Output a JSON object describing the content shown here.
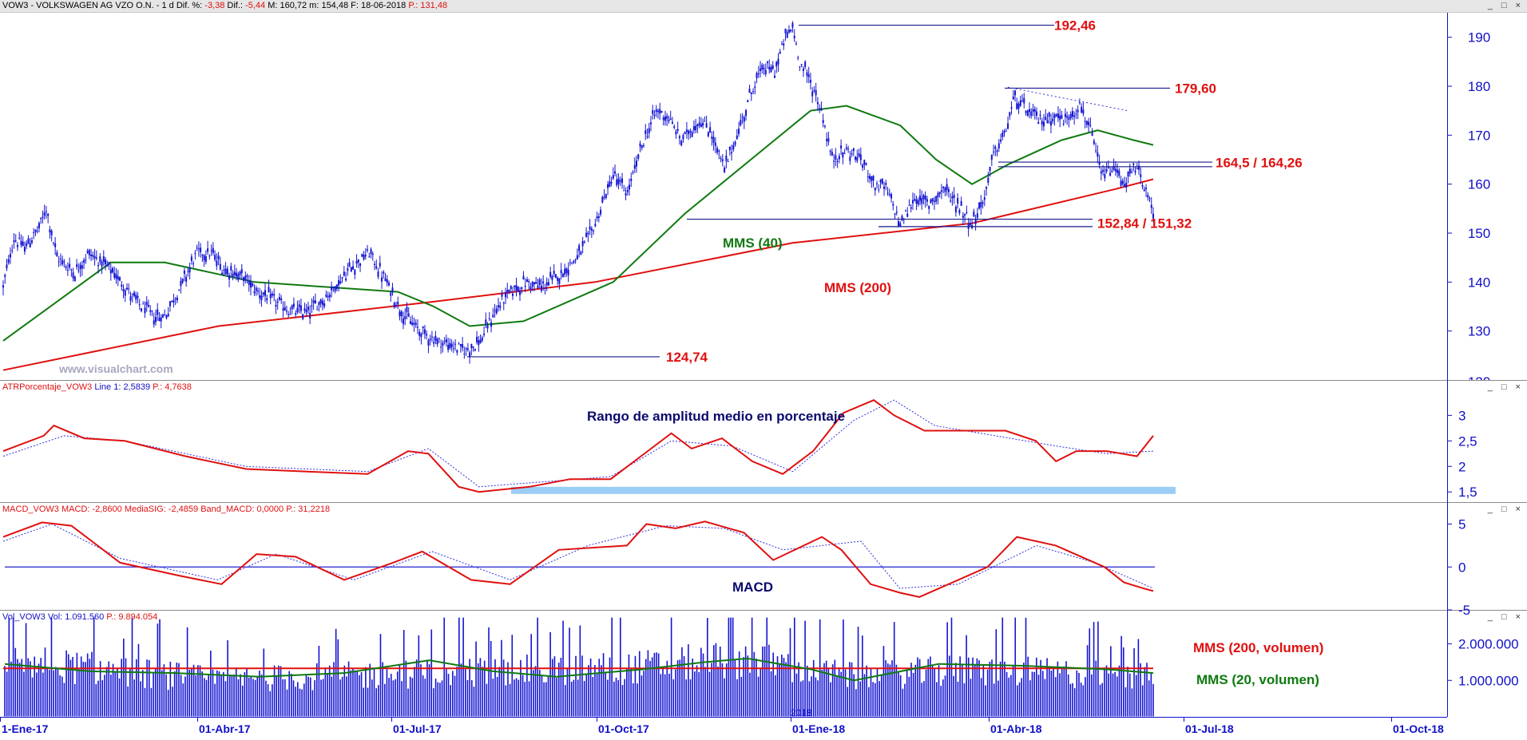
{
  "window": {
    "main_header": {
      "symbol": "VOW3 - VOLKSWAGEN AG VZO O.N. -  1 d",
      "dif_pct_label": "Dif. %:",
      "dif_pct_value": "-3,38",
      "dif_label": "Dif.:",
      "dif_value": "-5,44",
      "max_text": "M: 160,72",
      "min_text": "m: 154,48",
      "date_text": "F: 18-06-2018",
      "price_text": "P.: 131,48"
    },
    "atr_header": {
      "name": "ATRPorcentaje_VOW3",
      "line_text": "Line 1: 2,5839",
      "p_text": "P.: 4,7638"
    },
    "macd_header": {
      "text": "MACD_VOW3  MACD: -2,8600  MediaSIG: -2,4859  Band_MACD: 0,0000",
      "p_text": "P.: 31,2218"
    },
    "vol_header": {
      "text": "Vol_VOW3  Vol: 1.091.560",
      "p_text": "P.: 9.894.054"
    },
    "window_buttons": "_ □ ×"
  },
  "watermark": "www.visualchart.com",
  "colors": {
    "candles": "#1414d2",
    "mms200": "#e01010",
    "mms40": "#0f7a0f",
    "axis_text": "#1010c8",
    "annotation_red": "#e01010",
    "annotation_green": "#0f7a0f",
    "annotation_navy": "#0a0a6e",
    "atr_band": "#9ccdf5",
    "signal": "#3030e0"
  },
  "chart_data": [
    {
      "type": "candlestick",
      "panel": "price",
      "title": "VOW3 - VOLKSWAGEN AG VZO O.N.",
      "ylim": [
        120,
        195
      ],
      "y_ticks": [
        "130",
        "140",
        "150",
        "160",
        "170",
        "180",
        "190"
      ],
      "x_ticks": [
        "1-Ene-17",
        "01-Abr-17",
        "01-Jul-17",
        "01-Oct-17",
        "01-Ene-18",
        "01-Abr-18",
        "01-Jul-18",
        "01-Oct-18"
      ],
      "price_path": [
        [
          0,
          139
        ],
        [
          6,
          149
        ],
        [
          12,
          147
        ],
        [
          20,
          151
        ],
        [
          24,
          155
        ],
        [
          30,
          145
        ],
        [
          40,
          142
        ],
        [
          48,
          146
        ],
        [
          58,
          143
        ],
        [
          66,
          140
        ],
        [
          74,
          136
        ],
        [
          84,
          133
        ],
        [
          90,
          133
        ],
        [
          100,
          140
        ],
        [
          108,
          146
        ],
        [
          116,
          146
        ],
        [
          122,
          143
        ],
        [
          134,
          141
        ],
        [
          142,
          138
        ],
        [
          152,
          136
        ],
        [
          160,
          134
        ],
        [
          170,
          134
        ],
        [
          180,
          137
        ],
        [
          194,
          143
        ],
        [
          204,
          146
        ],
        [
          212,
          141
        ],
        [
          222,
          134
        ],
        [
          232,
          130
        ],
        [
          242,
          128
        ],
        [
          250,
          127
        ],
        [
          258,
          126
        ],
        [
          266,
          128
        ],
        [
          274,
          134
        ],
        [
          282,
          138
        ],
        [
          292,
          140
        ],
        [
          300,
          139
        ],
        [
          312,
          142
        ],
        [
          322,
          146
        ],
        [
          330,
          152
        ],
        [
          340,
          162
        ],
        [
          348,
          158
        ],
        [
          356,
          168
        ],
        [
          364,
          175
        ],
        [
          370,
          174
        ],
        [
          378,
          169
        ],
        [
          388,
          173
        ],
        [
          394,
          171
        ],
        [
          402,
          163
        ],
        [
          410,
          171
        ],
        [
          418,
          180
        ],
        [
          424,
          184
        ],
        [
          430,
          183
        ],
        [
          436,
          190
        ],
        [
          440,
          192
        ],
        [
          444,
          185
        ],
        [
          450,
          181
        ],
        [
          456,
          175
        ],
        [
          462,
          165
        ],
        [
          470,
          167
        ],
        [
          478,
          165
        ],
        [
          486,
          160
        ],
        [
          492,
          159
        ],
        [
          500,
          152
        ],
        [
          508,
          157
        ],
        [
          516,
          156
        ],
        [
          524,
          159
        ],
        [
          532,
          156
        ],
        [
          540,
          152
        ],
        [
          546,
          156
        ],
        [
          552,
          166
        ],
        [
          558,
          170
        ],
        [
          564,
          178
        ],
        [
          570,
          175
        ],
        [
          578,
          173
        ],
        [
          586,
          174
        ],
        [
          592,
          173
        ],
        [
          600,
          176
        ],
        [
          606,
          171
        ],
        [
          612,
          162
        ],
        [
          620,
          163
        ],
        [
          626,
          160
        ],
        [
          630,
          163
        ],
        [
          634,
          162
        ],
        [
          638,
          157
        ],
        [
          641,
          154
        ]
      ],
      "indicators": [
        {
          "name": "MMS (200)",
          "values": [
            [
              0,
              122
            ],
            [
              120,
              131
            ],
            [
              240,
              136
            ],
            [
              330,
              140
            ],
            [
              440,
              148
            ],
            [
              540,
              152
            ],
            [
              620,
              159
            ],
            [
              641,
              161
            ]
          ]
        },
        {
          "name": "MMS (40)",
          "values": [
            [
              0,
              128
            ],
            [
              60,
              144
            ],
            [
              90,
              144
            ],
            [
              140,
              140
            ],
            [
              180,
              139
            ],
            [
              220,
              138
            ],
            [
              240,
              135
            ],
            [
              260,
              131
            ],
            [
              290,
              132
            ],
            [
              340,
              140
            ],
            [
              380,
              154
            ],
            [
              420,
              166
            ],
            [
              450,
              175
            ],
            [
              470,
              176
            ],
            [
              500,
              172
            ],
            [
              520,
              165
            ],
            [
              540,
              160
            ],
            [
              560,
              164
            ],
            [
              590,
              169
            ],
            [
              610,
              171
            ],
            [
              630,
              169
            ],
            [
              641,
              168
            ]
          ]
        }
      ],
      "annotations": [
        {
          "text": "192,46",
          "value": 192.46
        },
        {
          "text": "179,60",
          "value": 179.6
        },
        {
          "text": "164,5 / 164,26",
          "values": [
            164.5,
            164.26
          ]
        },
        {
          "text": "152,84 / 151,32",
          "values": [
            152.84,
            151.32
          ]
        },
        {
          "text": "124,74",
          "value": 124.74
        },
        {
          "text": "MMS (40)"
        },
        {
          "text": "MMS (200)"
        }
      ]
    },
    {
      "type": "line",
      "panel": "atr",
      "title": "Rango de amplitud medio en porcentaje",
      "ylim": [
        1.3,
        3.6
      ],
      "y_ticks": [
        "1,5",
        "2",
        "2,5",
        "3"
      ],
      "series": [
        {
          "name": "Line 1",
          "values": [
            [
              0,
              2.3
            ],
            [
              20,
              2.6
            ],
            [
              25,
              2.8
            ],
            [
              40,
              2.55
            ],
            [
              60,
              2.5
            ],
            [
              90,
              2.2
            ],
            [
              120,
              1.95
            ],
            [
              150,
              1.9
            ],
            [
              180,
              1.85
            ],
            [
              200,
              2.3
            ],
            [
              210,
              2.25
            ],
            [
              225,
              1.6
            ],
            [
              235,
              1.5
            ],
            [
              260,
              1.6
            ],
            [
              280,
              1.75
            ],
            [
              300,
              1.75
            ],
            [
              315,
              2.2
            ],
            [
              330,
              2.65
            ],
            [
              340,
              2.35
            ],
            [
              355,
              2.55
            ],
            [
              370,
              2.1
            ],
            [
              385,
              1.85
            ],
            [
              400,
              2.3
            ],
            [
              415,
              3.05
            ],
            [
              430,
              3.3
            ],
            [
              440,
              3.0
            ],
            [
              455,
              2.7
            ],
            [
              475,
              2.7
            ],
            [
              495,
              2.7
            ],
            [
              510,
              2.5
            ],
            [
              520,
              2.1
            ],
            [
              530,
              2.3
            ],
            [
              545,
              2.3
            ],
            [
              560,
              2.2
            ],
            [
              568,
              2.6
            ]
          ]
        },
        {
          "name": "Signal",
          "values": [
            [
              0,
              2.2
            ],
            [
              30,
              2.6
            ],
            [
              60,
              2.5
            ],
            [
              120,
              2.0
            ],
            [
              180,
              1.9
            ],
            [
              210,
              2.35
            ],
            [
              235,
              1.6
            ],
            [
              300,
              1.8
            ],
            [
              330,
              2.5
            ],
            [
              360,
              2.4
            ],
            [
              390,
              1.9
            ],
            [
              420,
              2.9
            ],
            [
              440,
              3.3
            ],
            [
              460,
              2.8
            ],
            [
              520,
              2.4
            ],
            [
              545,
              2.25
            ],
            [
              568,
              2.3
            ]
          ]
        }
      ],
      "band": {
        "from": 1.46,
        "to": 1.6
      }
    },
    {
      "type": "line",
      "panel": "macd",
      "title": "MACD",
      "ylim": [
        -5,
        7
      ],
      "y_ticks": [
        "5",
        "0",
        "-5"
      ],
      "zero_line": 0,
      "series": [
        {
          "name": "MACD",
          "values": [
            [
              0,
              3.5
            ],
            [
              20,
              5.2
            ],
            [
              35,
              4.8
            ],
            [
              60,
              0.5
            ],
            [
              90,
              -1.0
            ],
            [
              112,
              -2.0
            ],
            [
              130,
              1.5
            ],
            [
              150,
              1.2
            ],
            [
              175,
              -1.5
            ],
            [
              200,
              0.5
            ],
            [
              215,
              1.8
            ],
            [
              240,
              -1.5
            ],
            [
              260,
              -2.0
            ],
            [
              285,
              2.0
            ],
            [
              320,
              2.5
            ],
            [
              330,
              5.0
            ],
            [
              345,
              4.5
            ],
            [
              360,
              5.3
            ],
            [
              380,
              4.0
            ],
            [
              395,
              0.8
            ],
            [
              420,
              3.5
            ],
            [
              430,
              2.0
            ],
            [
              445,
              -2.0
            ],
            [
              460,
              -3.0
            ],
            [
              470,
              -3.5
            ],
            [
              490,
              -1.5
            ],
            [
              505,
              0
            ],
            [
              520,
              3.5
            ],
            [
              540,
              2.5
            ],
            [
              565,
              0.0
            ],
            [
              575,
              -1.8
            ],
            [
              585,
              -2.5
            ],
            [
              590,
              -2.8
            ]
          ]
        },
        {
          "name": "MediaSIG",
          "values": [
            [
              0,
              3.0
            ],
            [
              25,
              5.0
            ],
            [
              60,
              1.0
            ],
            [
              110,
              -1.5
            ],
            [
              140,
              1.5
            ],
            [
              180,
              -1.5
            ],
            [
              220,
              1.8
            ],
            [
              260,
              -1.5
            ],
            [
              300,
              2.5
            ],
            [
              340,
              4.8
            ],
            [
              370,
              4.5
            ],
            [
              400,
              2.0
            ],
            [
              440,
              3.0
            ],
            [
              460,
              -2.5
            ],
            [
              490,
              -2.0
            ],
            [
              530,
              2.5
            ],
            [
              560,
              0.5
            ],
            [
              590,
              -2.5
            ]
          ]
        }
      ]
    },
    {
      "type": "bar",
      "panel": "volume",
      "ylim": [
        0,
        2800000
      ],
      "y_ticks": [
        "1.000.000",
        "2.000.000"
      ],
      "volume_profile": [
        [
          0,
          1800000
        ],
        [
          100,
          1200000
        ],
        [
          200,
          1400000
        ],
        [
          300,
          1600000
        ],
        [
          350,
          1900000
        ],
        [
          400,
          1300000
        ],
        [
          450,
          1500000
        ],
        [
          500,
          1400000
        ],
        [
          541,
          1300000
        ]
      ],
      "series": [
        {
          "name": "MMS (200, volumen)",
          "value": 1330000
        },
        {
          "name": "MMS (20, volumen)",
          "values": [
            [
              0,
              1450000
            ],
            [
              40,
              1250000
            ],
            [
              80,
              1200000
            ],
            [
              120,
              1100000
            ],
            [
              160,
              1200000
            ],
            [
              200,
              1550000
            ],
            [
              230,
              1250000
            ],
            [
              260,
              1100000
            ],
            [
              300,
              1300000
            ],
            [
              330,
              1500000
            ],
            [
              350,
              1600000
            ],
            [
              380,
              1300000
            ],
            [
              400,
              1000000
            ],
            [
              440,
              1450000
            ],
            [
              480,
              1400000
            ],
            [
              520,
              1300000
            ],
            [
              541,
              1200000
            ]
          ]
        }
      ],
      "x_marker_label": "2018"
    }
  ]
}
